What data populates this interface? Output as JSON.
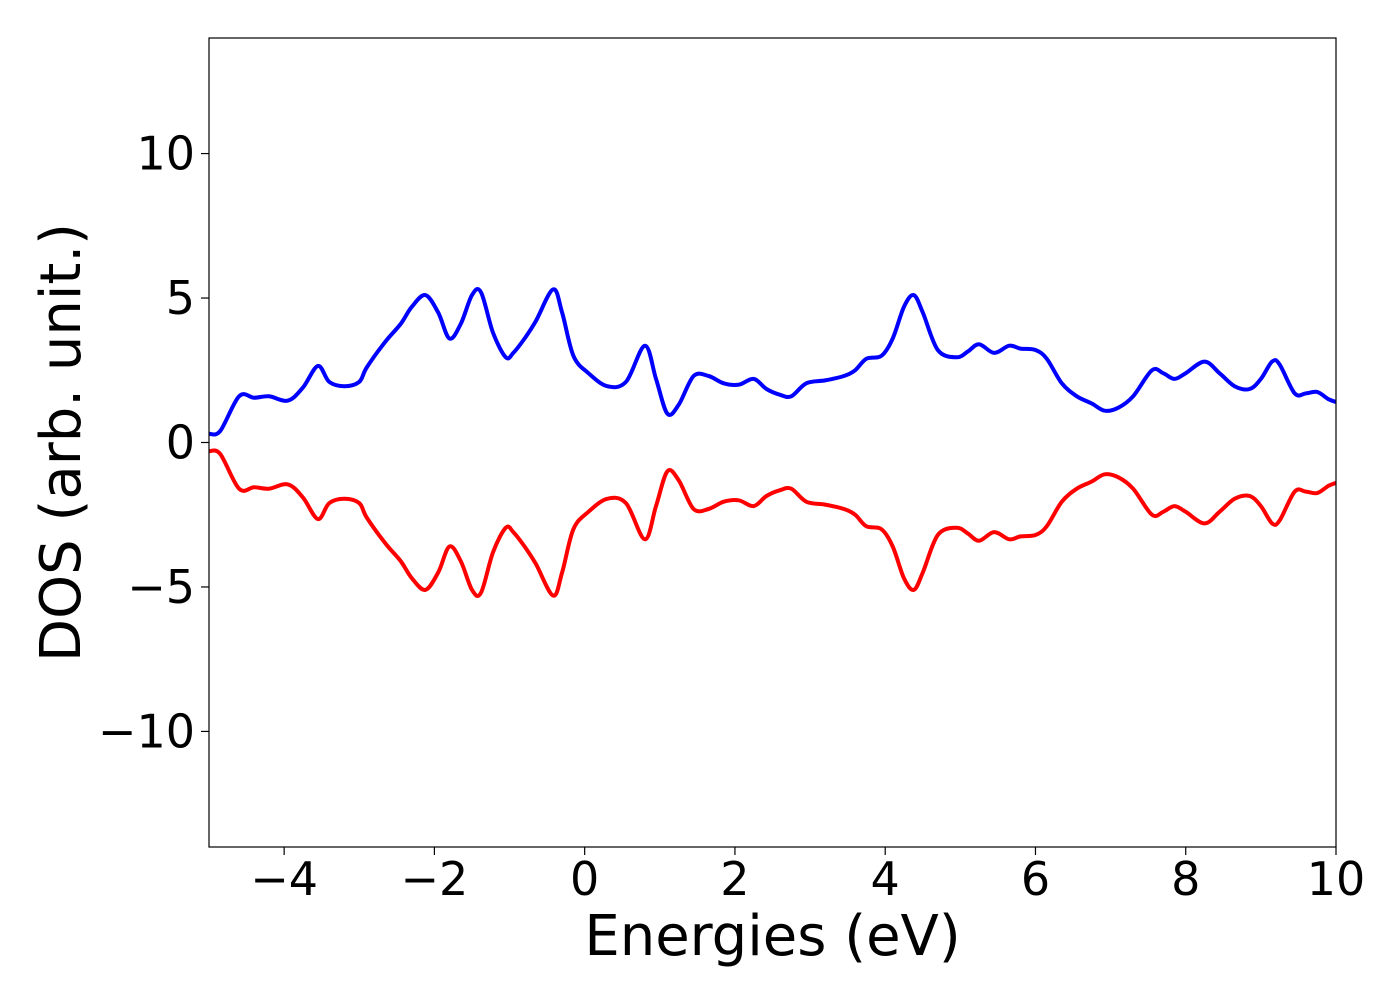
{
  "chart_data": {
    "type": "line",
    "title": "",
    "xlabel": "Energies (eV)",
    "ylabel": "DOS (arb. unit.)",
    "xlim": [
      -5,
      10
    ],
    "ylim": [
      -14,
      14
    ],
    "grid": false,
    "legend": "none",
    "x_ticks": [
      -4,
      -2,
      0,
      2,
      4,
      6,
      8,
      10
    ],
    "x_tick_labels": [
      "−4",
      "−2",
      "0",
      "2",
      "4",
      "6",
      "8",
      "10"
    ],
    "y_ticks": [
      10,
      5,
      0,
      -5,
      -10
    ],
    "y_tick_labels": [
      "10",
      "5",
      "0",
      "−5",
      "−10"
    ],
    "series": [
      {
        "color": "#0000ff",
        "x": [
          -5.0,
          -4.85,
          -4.6,
          -4.4,
          -4.2,
          -3.95,
          -3.75,
          -3.55,
          -3.4,
          -3.2,
          -3.0,
          -2.9,
          -2.65,
          -2.45,
          -2.3,
          -2.12,
          -1.95,
          -1.8,
          -1.65,
          -1.5,
          -1.38,
          -1.22,
          -1.05,
          -0.95,
          -0.8,
          -0.65,
          -0.42,
          -0.3,
          -0.15,
          0.05,
          0.3,
          0.55,
          0.8,
          0.95,
          1.1,
          1.25,
          1.45,
          1.65,
          1.85,
          2.05,
          2.25,
          2.42,
          2.6,
          2.75,
          2.95,
          3.2,
          3.45,
          3.6,
          3.75,
          3.95,
          4.1,
          4.25,
          4.38,
          4.5,
          4.7,
          4.95,
          5.1,
          5.25,
          5.45,
          5.65,
          5.8,
          6.0,
          6.15,
          6.35,
          6.55,
          6.75,
          6.92,
          7.1,
          7.3,
          7.55,
          7.7,
          7.85,
          8.0,
          8.25,
          8.45,
          8.65,
          8.85,
          9.0,
          9.15,
          9.25,
          9.45,
          9.6,
          9.75,
          9.9,
          10.0
        ],
        "values": [
          0.3,
          0.4,
          1.6,
          1.55,
          1.6,
          1.45,
          1.9,
          2.65,
          2.1,
          1.95,
          2.1,
          2.6,
          3.5,
          4.1,
          4.7,
          5.1,
          4.5,
          3.6,
          4.1,
          5.1,
          5.2,
          3.8,
          2.95,
          3.1,
          3.6,
          4.2,
          5.3,
          4.5,
          3.0,
          2.4,
          1.95,
          2.1,
          3.35,
          2.2,
          1.0,
          1.3,
          2.3,
          2.3,
          2.05,
          2.0,
          2.2,
          1.85,
          1.65,
          1.6,
          2.05,
          2.15,
          2.3,
          2.5,
          2.9,
          3.0,
          3.6,
          4.7,
          5.1,
          4.5,
          3.2,
          2.95,
          3.15,
          3.4,
          3.1,
          3.35,
          3.25,
          3.2,
          2.9,
          2.05,
          1.6,
          1.35,
          1.1,
          1.2,
          1.6,
          2.5,
          2.4,
          2.2,
          2.4,
          2.8,
          2.4,
          1.95,
          1.85,
          2.2,
          2.8,
          2.7,
          1.7,
          1.7,
          1.75,
          1.5,
          1.4
        ]
      },
      {
        "color": "#ff0000",
        "x": [
          -5.0,
          -4.85,
          -4.6,
          -4.4,
          -4.2,
          -3.95,
          -3.75,
          -3.55,
          -3.4,
          -3.2,
          -3.0,
          -2.9,
          -2.65,
          -2.45,
          -2.3,
          -2.12,
          -1.95,
          -1.8,
          -1.65,
          -1.5,
          -1.38,
          -1.22,
          -1.05,
          -0.95,
          -0.8,
          -0.65,
          -0.42,
          -0.3,
          -0.15,
          0.05,
          0.3,
          0.55,
          0.8,
          0.95,
          1.1,
          1.25,
          1.45,
          1.65,
          1.85,
          2.05,
          2.25,
          2.42,
          2.6,
          2.75,
          2.95,
          3.2,
          3.45,
          3.6,
          3.75,
          3.95,
          4.1,
          4.25,
          4.38,
          4.5,
          4.7,
          4.95,
          5.1,
          5.25,
          5.45,
          5.65,
          5.8,
          6.0,
          6.15,
          6.35,
          6.55,
          6.75,
          6.92,
          7.1,
          7.3,
          7.55,
          7.7,
          7.85,
          8.0,
          8.25,
          8.45,
          8.65,
          8.85,
          9.0,
          9.15,
          9.25,
          9.45,
          9.6,
          9.75,
          9.9,
          10.0
        ],
        "values": [
          -0.3,
          -0.4,
          -1.6,
          -1.55,
          -1.6,
          -1.45,
          -1.9,
          -2.65,
          -2.1,
          -1.95,
          -2.1,
          -2.6,
          -3.5,
          -4.1,
          -4.7,
          -5.1,
          -4.5,
          -3.6,
          -4.1,
          -5.1,
          -5.2,
          -3.8,
          -2.95,
          -3.1,
          -3.6,
          -4.2,
          -5.3,
          -4.5,
          -3.0,
          -2.4,
          -1.95,
          -2.1,
          -3.35,
          -2.2,
          -1.0,
          -1.3,
          -2.3,
          -2.3,
          -2.05,
          -2.0,
          -2.2,
          -1.85,
          -1.65,
          -1.6,
          -2.05,
          -2.15,
          -2.3,
          -2.5,
          -2.9,
          -3.0,
          -3.6,
          -4.7,
          -5.1,
          -4.5,
          -3.2,
          -2.95,
          -3.15,
          -3.4,
          -3.1,
          -3.35,
          -3.25,
          -3.2,
          -2.9,
          -2.05,
          -1.6,
          -1.35,
          -1.1,
          -1.2,
          -1.6,
          -2.5,
          -2.4,
          -2.2,
          -2.4,
          -2.8,
          -2.4,
          -1.95,
          -1.85,
          -2.2,
          -2.8,
          -2.7,
          -1.7,
          -1.7,
          -1.75,
          -1.5,
          -1.4
        ]
      }
    ]
  }
}
